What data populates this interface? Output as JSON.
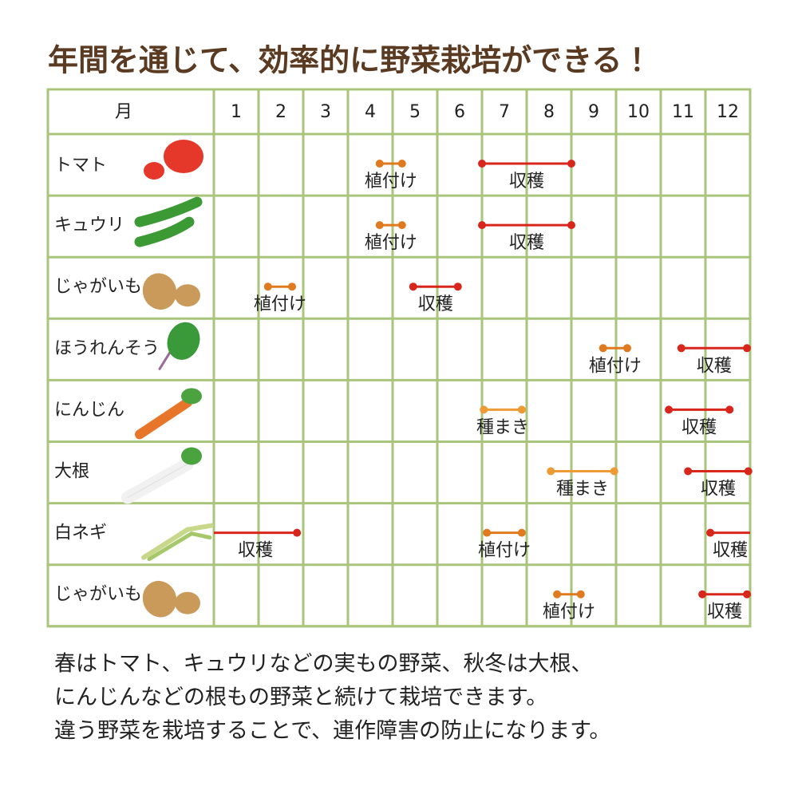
{
  "title": "年間を通じて、効率的に野菜栽培ができる！",
  "header": {
    "label": "月",
    "months": [
      "1",
      "2",
      "3",
      "4",
      "5",
      "6",
      "7",
      "8",
      "9",
      "10",
      "11",
      "12"
    ]
  },
  "rows": [
    {
      "name": "トマト",
      "tasks": [
        {
          "label": "植付け",
          "start": 3.71,
          "end": 4.21,
          "color": "#e07a1f"
        },
        {
          "label": "収穫",
          "start": 6.0,
          "end": 8.0,
          "color": "#d9261c"
        }
      ]
    },
    {
      "name": "キュウリ",
      "tasks": [
        {
          "label": "植付け",
          "start": 3.71,
          "end": 4.21,
          "color": "#e07a1f"
        },
        {
          "label": "収穫",
          "start": 6.0,
          "end": 8.0,
          "color": "#d9261c"
        }
      ]
    },
    {
      "name": "じゃがいも",
      "tasks": [
        {
          "label": "植付け",
          "start": 1.21,
          "end": 1.75,
          "color": "#e07a1f"
        },
        {
          "label": "収穫",
          "start": 4.46,
          "end": 5.46,
          "color": "#d9261c"
        }
      ]
    },
    {
      "name": "ほうれんそう",
      "tasks": [
        {
          "label": "植付け",
          "start": 8.71,
          "end": 9.25,
          "color": "#e07a1f"
        },
        {
          "label": "収穫",
          "start": 10.46,
          "end": 11.93,
          "color": "#d9261c"
        }
      ]
    },
    {
      "name": "にんじん",
      "tasks": [
        {
          "label": "種まき",
          "start": 6.04,
          "end": 6.89,
          "color": "#ee9a35"
        },
        {
          "label": "収穫",
          "start": 10.18,
          "end": 11.54,
          "color": "#d9261c"
        }
      ]
    },
    {
      "name": "大根",
      "tasks": [
        {
          "label": "種まき",
          "start": 7.54,
          "end": 8.96,
          "color": "#ee9a35"
        },
        {
          "label": "収穫",
          "start": 10.61,
          "end": 11.96,
          "color": "#d9261c"
        }
      ]
    },
    {
      "name": "白ネギ",
      "tasks": [
        {
          "label": "収穫",
          "start": 0,
          "end": 1.86,
          "color": "#d9261c"
        },
        {
          "label": "植付け",
          "start": 6.11,
          "end": 6.89,
          "color": "#e07a1f"
        },
        {
          "label": "収穫",
          "start": 11.11,
          "end": 12,
          "color": "#d9261c"
        }
      ]
    },
    {
      "name": "じゃがいも",
      "tasks": [
        {
          "label": "植付け",
          "start": 7.68,
          "end": 8.21,
          "color": "#e07a1f"
        },
        {
          "label": "収穫",
          "start": 10.93,
          "end": 11.93,
          "color": "#d9261c"
        }
      ]
    }
  ],
  "notes": [
    "春はトマト、キュウリなどの実もの野菜、秋冬は大根、",
    "にんじんなどの根もの野菜と続けて栽培できます。",
    "違う野菜を栽培することで、連作障害の防止になります。"
  ]
}
